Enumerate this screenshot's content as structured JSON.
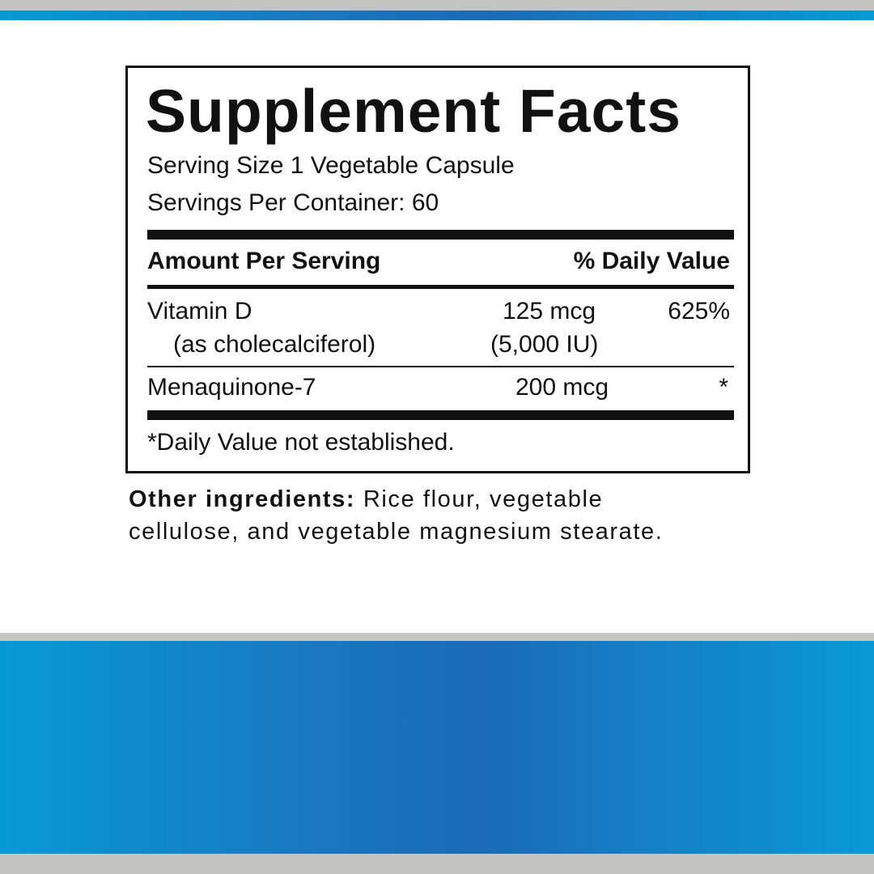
{
  "colors": {
    "band_blue": "#1b6bb6",
    "band_gray": "#c4c4c2",
    "text": "#111111"
  },
  "panel": {
    "title": "Supplement Facts",
    "serving_size": "Serving Size 1 Vegetable Capsule",
    "servings_per_container": "Servings Per Container: 60",
    "header": {
      "amount": "Amount Per Serving",
      "daily_value": "% Daily Value"
    },
    "rows": [
      {
        "name": "Vitamin D",
        "sub": "(as cholecalciferol)",
        "amount": "125 mcg",
        "amount_sub": "(5,000 IU)",
        "dv": "625%"
      },
      {
        "name": "Menaquinone-7",
        "amount": "200 mcg",
        "dv": "*"
      }
    ],
    "footnote": "*Daily Value not established."
  },
  "other_ingredients": {
    "label": "Other ingredients:",
    "line1": "Rice flour, vegetable",
    "line2": "cellulose, and vegetable magnesium stearate."
  }
}
